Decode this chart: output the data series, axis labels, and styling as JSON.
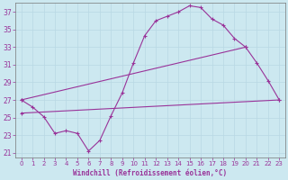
{
  "xlabel": "Windchill (Refroidissement éolien,°C)",
  "line_color": "#993399",
  "bg_color": "#cce8f0",
  "grid_color": "#aaccdd",
  "xlim": [
    -0.5,
    23.5
  ],
  "ylim": [
    20.5,
    38.0
  ],
  "yticks": [
    21,
    23,
    25,
    27,
    29,
    31,
    33,
    35,
    37
  ],
  "xticks": [
    0,
    1,
    2,
    3,
    4,
    5,
    6,
    7,
    8,
    9,
    10,
    11,
    12,
    13,
    14,
    15,
    16,
    17,
    18,
    19,
    20,
    21,
    22,
    23
  ],
  "curve1_x": [
    0,
    1,
    2,
    3,
    4,
    5,
    6,
    7,
    8,
    9,
    10,
    11,
    12,
    13,
    14,
    15,
    16,
    17,
    18,
    19,
    20,
    21,
    22,
    23
  ],
  "curve1_y": [
    27.0,
    26.2,
    25.1,
    23.2,
    23.5,
    23.2,
    21.2,
    22.4,
    25.2,
    27.8,
    31.2,
    34.3,
    36.0,
    36.5,
    37.0,
    37.7,
    37.5,
    36.2,
    35.5,
    34.0,
    33.0,
    31.2,
    29.2,
    27.0
  ],
  "line2_x": [
    0,
    20
  ],
  "line2_y": [
    27.0,
    33.0
  ],
  "line3_x": [
    0,
    23
  ],
  "line3_y": [
    25.5,
    27.0
  ],
  "marker": "+"
}
